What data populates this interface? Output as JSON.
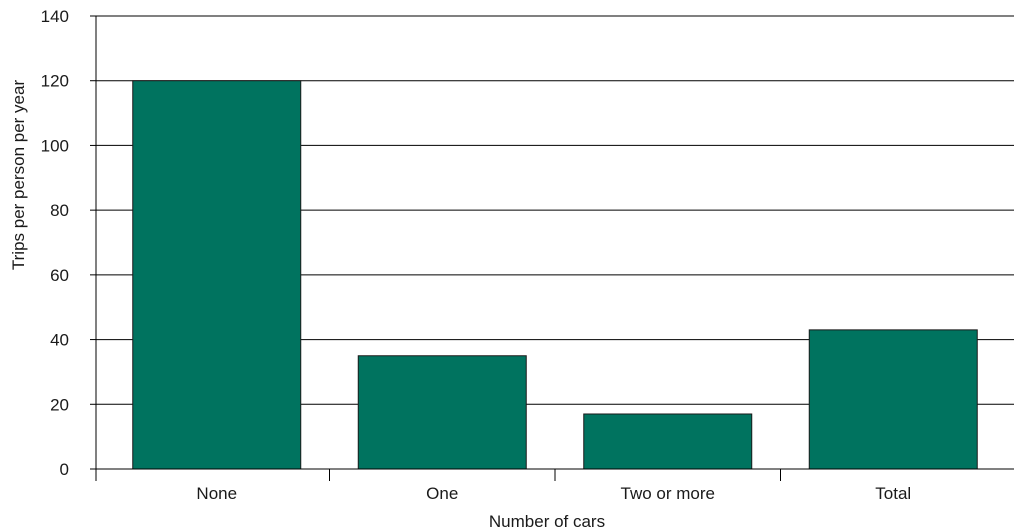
{
  "chart_data": {
    "type": "bar",
    "categories": [
      "None",
      "One",
      "Two or more",
      "Total"
    ],
    "values": [
      120,
      35,
      17,
      43
    ],
    "title": "",
    "xlabel": "Number of cars",
    "ylabel": "Trips per person per year",
    "ylim": [
      0,
      140
    ],
    "yticks": [
      0,
      20,
      40,
      60,
      80,
      100,
      120,
      140
    ],
    "grid": true,
    "bar_color": "#00735f"
  }
}
